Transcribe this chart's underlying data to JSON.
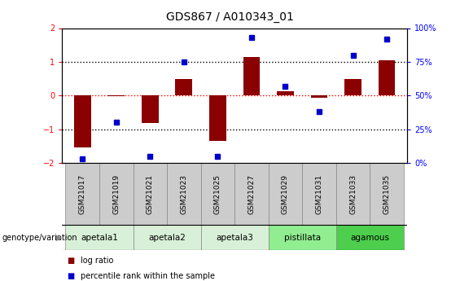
{
  "title": "GDS867 / A010343_01",
  "samples": [
    "GSM21017",
    "GSM21019",
    "GSM21021",
    "GSM21023",
    "GSM21025",
    "GSM21027",
    "GSM21029",
    "GSM21031",
    "GSM21033",
    "GSM21035"
  ],
  "log_ratio": [
    -1.55,
    -0.02,
    -0.82,
    0.5,
    -1.35,
    1.15,
    0.13,
    -0.07,
    0.48,
    1.05
  ],
  "percentile_rank": [
    3,
    30,
    5,
    75,
    5,
    93,
    57,
    38,
    80,
    92
  ],
  "ylim": [
    -2,
    2
  ],
  "right_ylim": [
    0,
    100
  ],
  "right_yticks": [
    0,
    25,
    50,
    75,
    100
  ],
  "right_yticklabels": [
    "0%",
    "25%",
    "50%",
    "75%",
    "100%"
  ],
  "left_yticks": [
    -2,
    -1,
    0,
    1,
    2
  ],
  "bar_color": "#8B0000",
  "dot_color": "#0000CD",
  "groups": [
    {
      "name": "apetala1",
      "start": 0,
      "end": 1,
      "color": "#d8f0d8"
    },
    {
      "name": "apetala2",
      "start": 2,
      "end": 3,
      "color": "#d8f0d8"
    },
    {
      "name": "apetala3",
      "start": 4,
      "end": 5,
      "color": "#d8f0d8"
    },
    {
      "name": "pistillata",
      "start": 6,
      "end": 7,
      "color": "#90ee90"
    },
    {
      "name": "agamous",
      "start": 8,
      "end": 9,
      "color": "#4dcf4d"
    }
  ],
  "group_label": "genotype/variation",
  "legend_items": [
    {
      "label": "log ratio",
      "color": "#8B0000"
    },
    {
      "label": "percentile rank within the sample",
      "color": "#0000CD"
    }
  ],
  "background_color": "#ffffff",
  "title_fontsize": 10,
  "tick_fontsize": 7,
  "label_fontsize": 7.5
}
